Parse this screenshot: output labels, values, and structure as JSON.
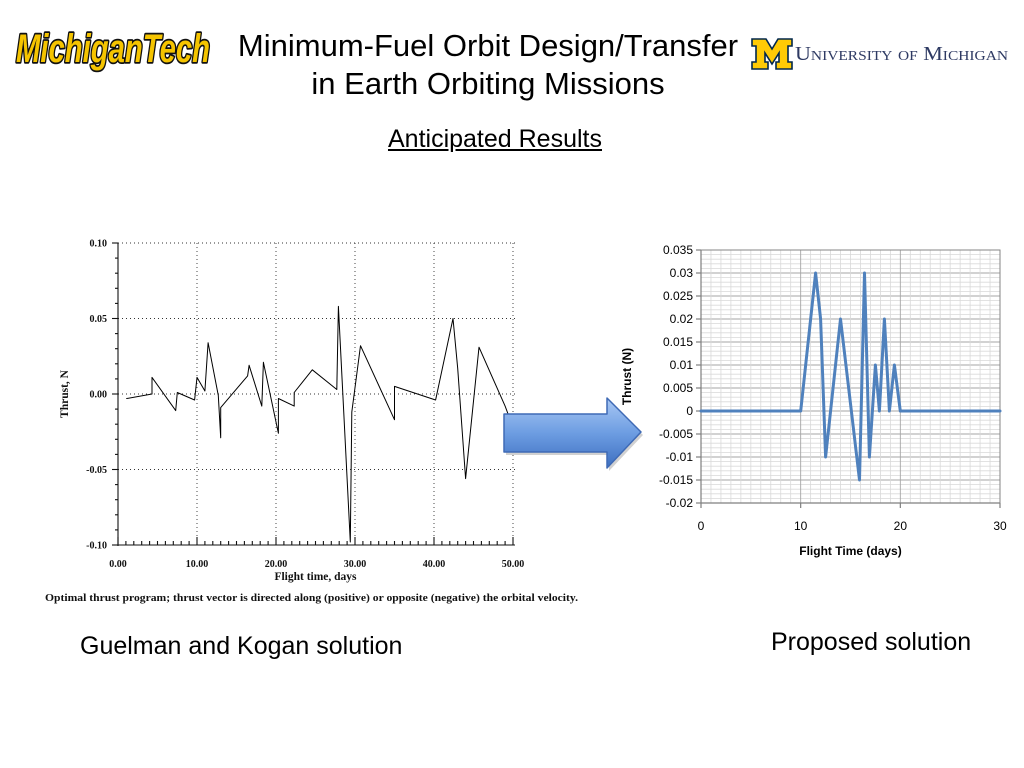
{
  "slide": {
    "title_line1": "Minimum-Fuel Orbit Design/Transfer",
    "title_line2": "in Earth Orbiting Missions",
    "subtitle": "Anticipated Results"
  },
  "logos": {
    "left": "MichiganTech",
    "right_mark": "M",
    "right_text": "University of Michigan",
    "colors": {
      "tech_gold": "#F5C400",
      "tech_outline": "#111111",
      "maize": "#FFCB05",
      "blue": "#00274C",
      "wordmark": "#2E3A63"
    }
  },
  "arrow": {
    "icon": "right-arrow-icon",
    "color": "#3F6AB5"
  },
  "panels": {
    "left_caption": "Guelman and Kogan solution",
    "right_caption": "Proposed solution"
  },
  "chart_data": [
    {
      "type": "line",
      "xlabel": "Flight time, days",
      "ylabel": "Thrust, N",
      "xlim": [
        0,
        50
      ],
      "ylim": [
        -0.1,
        0.1
      ],
      "xticks": [
        "0.00",
        "10.00",
        "20.00",
        "30.00",
        "40.00",
        "50.00"
      ],
      "yticks": [
        "0.10",
        "0.05",
        "0.00",
        "-0.05",
        "-0.10"
      ],
      "grid": "dotted",
      "caption": "Optimal thrust program; thrust vector is directed along (positive) or opposite (negative) the orbital velocity.",
      "series": [
        {
          "color": "#000000",
          "x": [
            1.1,
            4.3,
            4.3,
            7.3,
            7.5,
            9.7,
            10.0,
            11.0,
            11.4,
            12.7,
            13.0,
            13.0,
            16.4,
            16.6,
            18.2,
            18.4,
            20.3,
            20.3,
            22.3,
            22.3,
            24.6,
            27.7,
            27.9,
            29.4,
            29.6,
            30.7,
            35.0,
            35.0,
            40.2,
            42.4,
            43.0,
            44.0,
            45.7,
            49.0,
            50.0
          ],
          "y": [
            -0.003,
            0.0,
            0.011,
            -0.011,
            0.001,
            -0.004,
            0.011,
            0.002,
            0.034,
            -0.001,
            -0.029,
            -0.009,
            0.012,
            0.019,
            -0.008,
            0.021,
            -0.026,
            -0.003,
            -0.008,
            0.001,
            0.016,
            0.003,
            0.058,
            -0.098,
            -0.012,
            0.032,
            -0.017,
            0.005,
            -0.004,
            0.05,
            0.017,
            -0.056,
            0.031,
            -0.008,
            -0.022
          ]
        }
      ]
    },
    {
      "type": "line",
      "xlabel": "Flight Time (days)",
      "ylabel": "Thrust (N)",
      "xlim": [
        0,
        30
      ],
      "ylim": [
        -0.02,
        0.035
      ],
      "xticks": [
        "0",
        "10",
        "20",
        "30"
      ],
      "yticks": [
        "0.035",
        "0.03",
        "0.025",
        "0.02",
        "0.015",
        "0.01",
        "0.005",
        "0",
        "-0.005",
        "-0.01",
        "-0.015",
        "-0.02"
      ],
      "grid": true,
      "series": [
        {
          "color": "#4F81BD",
          "x": [
            0,
            10,
            11.5,
            12,
            12.5,
            14,
            15.9,
            16.4,
            16.9,
            17.5,
            17.9,
            18.4,
            18.9,
            19.4,
            20,
            30
          ],
          "y": [
            0,
            0,
            0.03,
            0.02,
            -0.01,
            0.02,
            -0.015,
            0.03,
            -0.01,
            0.01,
            0,
            0.02,
            0,
            0.01,
            0,
            0
          ]
        }
      ]
    }
  ]
}
